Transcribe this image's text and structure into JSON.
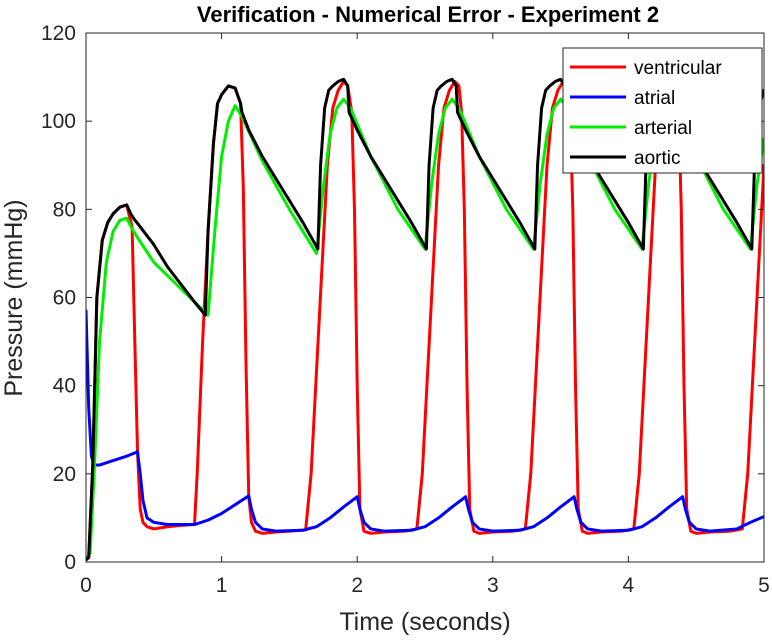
{
  "chart_data": {
    "type": "line",
    "title": "Verification - Numerical Error - Experiment 2",
    "xlabel": "Time (seconds)",
    "ylabel": "Pressure (mmHg)",
    "xlim": [
      0,
      5
    ],
    "ylim": [
      0,
      120
    ],
    "x_ticks": [
      0,
      1,
      2,
      3,
      4,
      5
    ],
    "y_ticks": [
      0,
      20,
      40,
      60,
      80,
      100,
      120
    ],
    "x_tick_labels": [
      "0",
      "1",
      "2",
      "3",
      "4",
      "5"
    ],
    "y_tick_labels": [
      "0",
      "20",
      "40",
      "60",
      "80",
      "100",
      "120"
    ],
    "grid": false,
    "legend_position": "top-right",
    "series": [
      {
        "name": "ventricular",
        "color": "#ff0000",
        "x": [
          0,
          0.02,
          0.05,
          0.08,
          0.12,
          0.16,
          0.2,
          0.25,
          0.3,
          0.34,
          0.36,
          0.38,
          0.4,
          0.42,
          0.45,
          0.5,
          0.6,
          0.7,
          0.8,
          0.82,
          0.86,
          0.9,
          0.94,
          0.97,
          1.0,
          1.05,
          1.1,
          1.14,
          1.16,
          1.18,
          1.2,
          1.22,
          1.25,
          1.3,
          1.4,
          1.5,
          1.62,
          1.66,
          1.72,
          1.78,
          1.82,
          1.86,
          1.9,
          1.93,
          1.96,
          1.98,
          2.0,
          2.02,
          2.05,
          2.1,
          2.2,
          2.35,
          2.44,
          2.48,
          2.54,
          2.6,
          2.64,
          2.68,
          2.72,
          2.75,
          2.77,
          2.79,
          2.81,
          2.83,
          2.86,
          2.9,
          3.0,
          3.15,
          3.24,
          3.28,
          3.34,
          3.4,
          3.44,
          3.48,
          3.52,
          3.55,
          3.57,
          3.59,
          3.61,
          3.63,
          3.66,
          3.7,
          3.8,
          3.95,
          4.04,
          4.08,
          4.14,
          4.2,
          4.24,
          4.28,
          4.32,
          4.35,
          4.37,
          4.39,
          4.41,
          4.43,
          4.46,
          4.5,
          4.6,
          4.75,
          4.84,
          4.88,
          4.94,
          5.0
        ],
        "y": [
          0.5,
          1,
          22,
          60,
          73,
          77,
          79,
          80.5,
          81,
          76,
          50,
          25,
          12,
          9,
          8,
          7.5,
          8,
          8.3,
          8.5,
          20,
          50,
          75,
          95,
          104,
          106,
          108,
          107.5,
          104,
          85,
          45,
          15,
          9,
          7,
          6.5,
          6.8,
          7,
          7.3,
          20,
          55,
          90,
          103,
          107,
          109,
          108,
          102,
          80,
          40,
          12,
          7,
          6.5,
          6.8,
          7,
          7.5,
          20,
          55,
          90,
          103,
          107,
          109,
          108,
          102,
          80,
          40,
          12,
          7,
          6.5,
          6.8,
          7,
          7.5,
          20,
          55,
          90,
          103,
          107,
          109,
          108,
          102,
          80,
          40,
          12,
          7,
          6.5,
          6.8,
          7,
          7.5,
          20,
          55,
          90,
          103,
          107,
          109,
          108,
          102,
          80,
          40,
          12,
          7,
          6.5,
          6.8,
          7,
          7.5,
          20,
          55,
          90
        ]
      },
      {
        "name": "atrial",
        "color": "#0000ff",
        "x": [
          0,
          0.02,
          0.04,
          0.06,
          0.1,
          0.2,
          0.3,
          0.38,
          0.4,
          0.42,
          0.45,
          0.5,
          0.6,
          0.8,
          0.9,
          1.0,
          1.1,
          1.2,
          1.22,
          1.25,
          1.3,
          1.4,
          1.6,
          1.7,
          1.8,
          1.9,
          2.0,
          2.02,
          2.05,
          2.1,
          2.2,
          2.4,
          2.5,
          2.6,
          2.7,
          2.8,
          2.82,
          2.85,
          2.9,
          3.0,
          3.2,
          3.3,
          3.4,
          3.5,
          3.6,
          3.62,
          3.65,
          3.7,
          3.8,
          4.0,
          4.1,
          4.2,
          4.3,
          4.4,
          4.42,
          4.45,
          4.5,
          4.6,
          4.8,
          4.9,
          5.0
        ],
        "y": [
          57,
          35,
          24,
          22,
          22,
          23,
          24,
          25,
          20,
          14,
          10,
          9,
          8.5,
          8.5,
          9.5,
          11,
          13,
          15,
          12,
          9,
          7.5,
          7,
          7.2,
          8,
          10,
          12.5,
          14.8,
          12,
          9,
          7.5,
          7,
          7.2,
          8,
          10,
          12.5,
          14.8,
          12,
          9,
          7.5,
          7,
          7.2,
          8,
          10,
          12.5,
          14.8,
          12,
          9,
          7.5,
          7,
          7.2,
          8,
          10,
          12.5,
          14.8,
          12,
          9,
          7.5,
          7,
          7.5,
          9,
          10.3
        ]
      },
      {
        "name": "arterial",
        "color": "#00ee00",
        "x": [
          0,
          0.03,
          0.06,
          0.1,
          0.15,
          0.2,
          0.25,
          0.3,
          0.35,
          0.5,
          0.7,
          0.9,
          0.95,
          1.0,
          1.05,
          1.1,
          1.15,
          1.3,
          1.5,
          1.7,
          1.75,
          1.8,
          1.85,
          1.9,
          1.95,
          2.1,
          2.3,
          2.5,
          2.55,
          2.6,
          2.65,
          2.7,
          2.75,
          2.9,
          3.1,
          3.3,
          3.35,
          3.4,
          3.45,
          3.5,
          3.55,
          3.7,
          3.9,
          4.1,
          4.15,
          4.2,
          4.25,
          4.3,
          4.35,
          4.5,
          4.7,
          4.9,
          4.95,
          5.0
        ],
        "y": [
          0.5,
          2,
          20,
          50,
          68,
          75,
          77.5,
          78,
          75,
          68,
          62,
          56,
          75,
          92,
          100,
          103.5,
          101,
          91,
          80,
          70,
          85,
          97,
          103,
          105,
          103,
          92,
          80,
          71,
          86,
          97,
          103,
          105,
          103,
          92,
          80,
          71,
          86,
          97,
          103,
          105,
          103,
          92,
          80,
          71,
          86,
          97,
          103,
          105,
          103,
          92,
          80,
          71,
          86,
          96
        ]
      },
      {
        "name": "aortic",
        "color": "#000000",
        "x": [
          0,
          0.02,
          0.05,
          0.08,
          0.12,
          0.16,
          0.2,
          0.25,
          0.3,
          0.33,
          0.35,
          0.4,
          0.5,
          0.6,
          0.7,
          0.8,
          0.88,
          0.9,
          0.94,
          0.97,
          1.0,
          1.05,
          1.1,
          1.14,
          1.15,
          1.2,
          1.3,
          1.4,
          1.5,
          1.6,
          1.71,
          1.73,
          1.76,
          1.79,
          1.82,
          1.86,
          1.9,
          1.93,
          1.94,
          2.0,
          2.1,
          2.2,
          2.3,
          2.4,
          2.51,
          2.53,
          2.56,
          2.59,
          2.62,
          2.66,
          2.7,
          2.73,
          2.74,
          2.8,
          2.9,
          3.0,
          3.1,
          3.2,
          3.31,
          3.33,
          3.36,
          3.39,
          3.42,
          3.46,
          3.5,
          3.53,
          3.54,
          3.6,
          3.7,
          3.8,
          3.9,
          4.0,
          4.11,
          4.13,
          4.16,
          4.19,
          4.22,
          4.26,
          4.3,
          4.33,
          4.34,
          4.4,
          4.5,
          4.6,
          4.7,
          4.8,
          4.91,
          4.93,
          4.96,
          5.0
        ],
        "y": [
          0.5,
          1,
          22,
          60,
          73,
          77,
          79,
          80.5,
          81,
          79,
          78,
          76,
          72,
          67,
          63,
          59,
          56,
          75,
          95,
          104,
          106,
          108,
          107.5,
          104,
          102,
          98,
          92,
          87,
          82,
          77,
          71,
          90,
          103,
          107,
          108,
          109,
          109.5,
          108,
          102,
          98,
          92,
          87,
          82,
          77,
          71,
          90,
          103,
          107,
          108,
          109,
          109.5,
          108,
          102,
          98,
          92,
          87,
          82,
          77,
          71,
          90,
          103,
          107,
          108,
          109,
          109.5,
          108,
          102,
          98,
          92,
          87,
          82,
          77,
          71,
          90,
          103,
          107,
          108,
          109,
          109.5,
          108,
          102,
          98,
          92,
          87,
          82,
          77,
          71,
          90,
          103,
          107
        ]
      }
    ]
  }
}
